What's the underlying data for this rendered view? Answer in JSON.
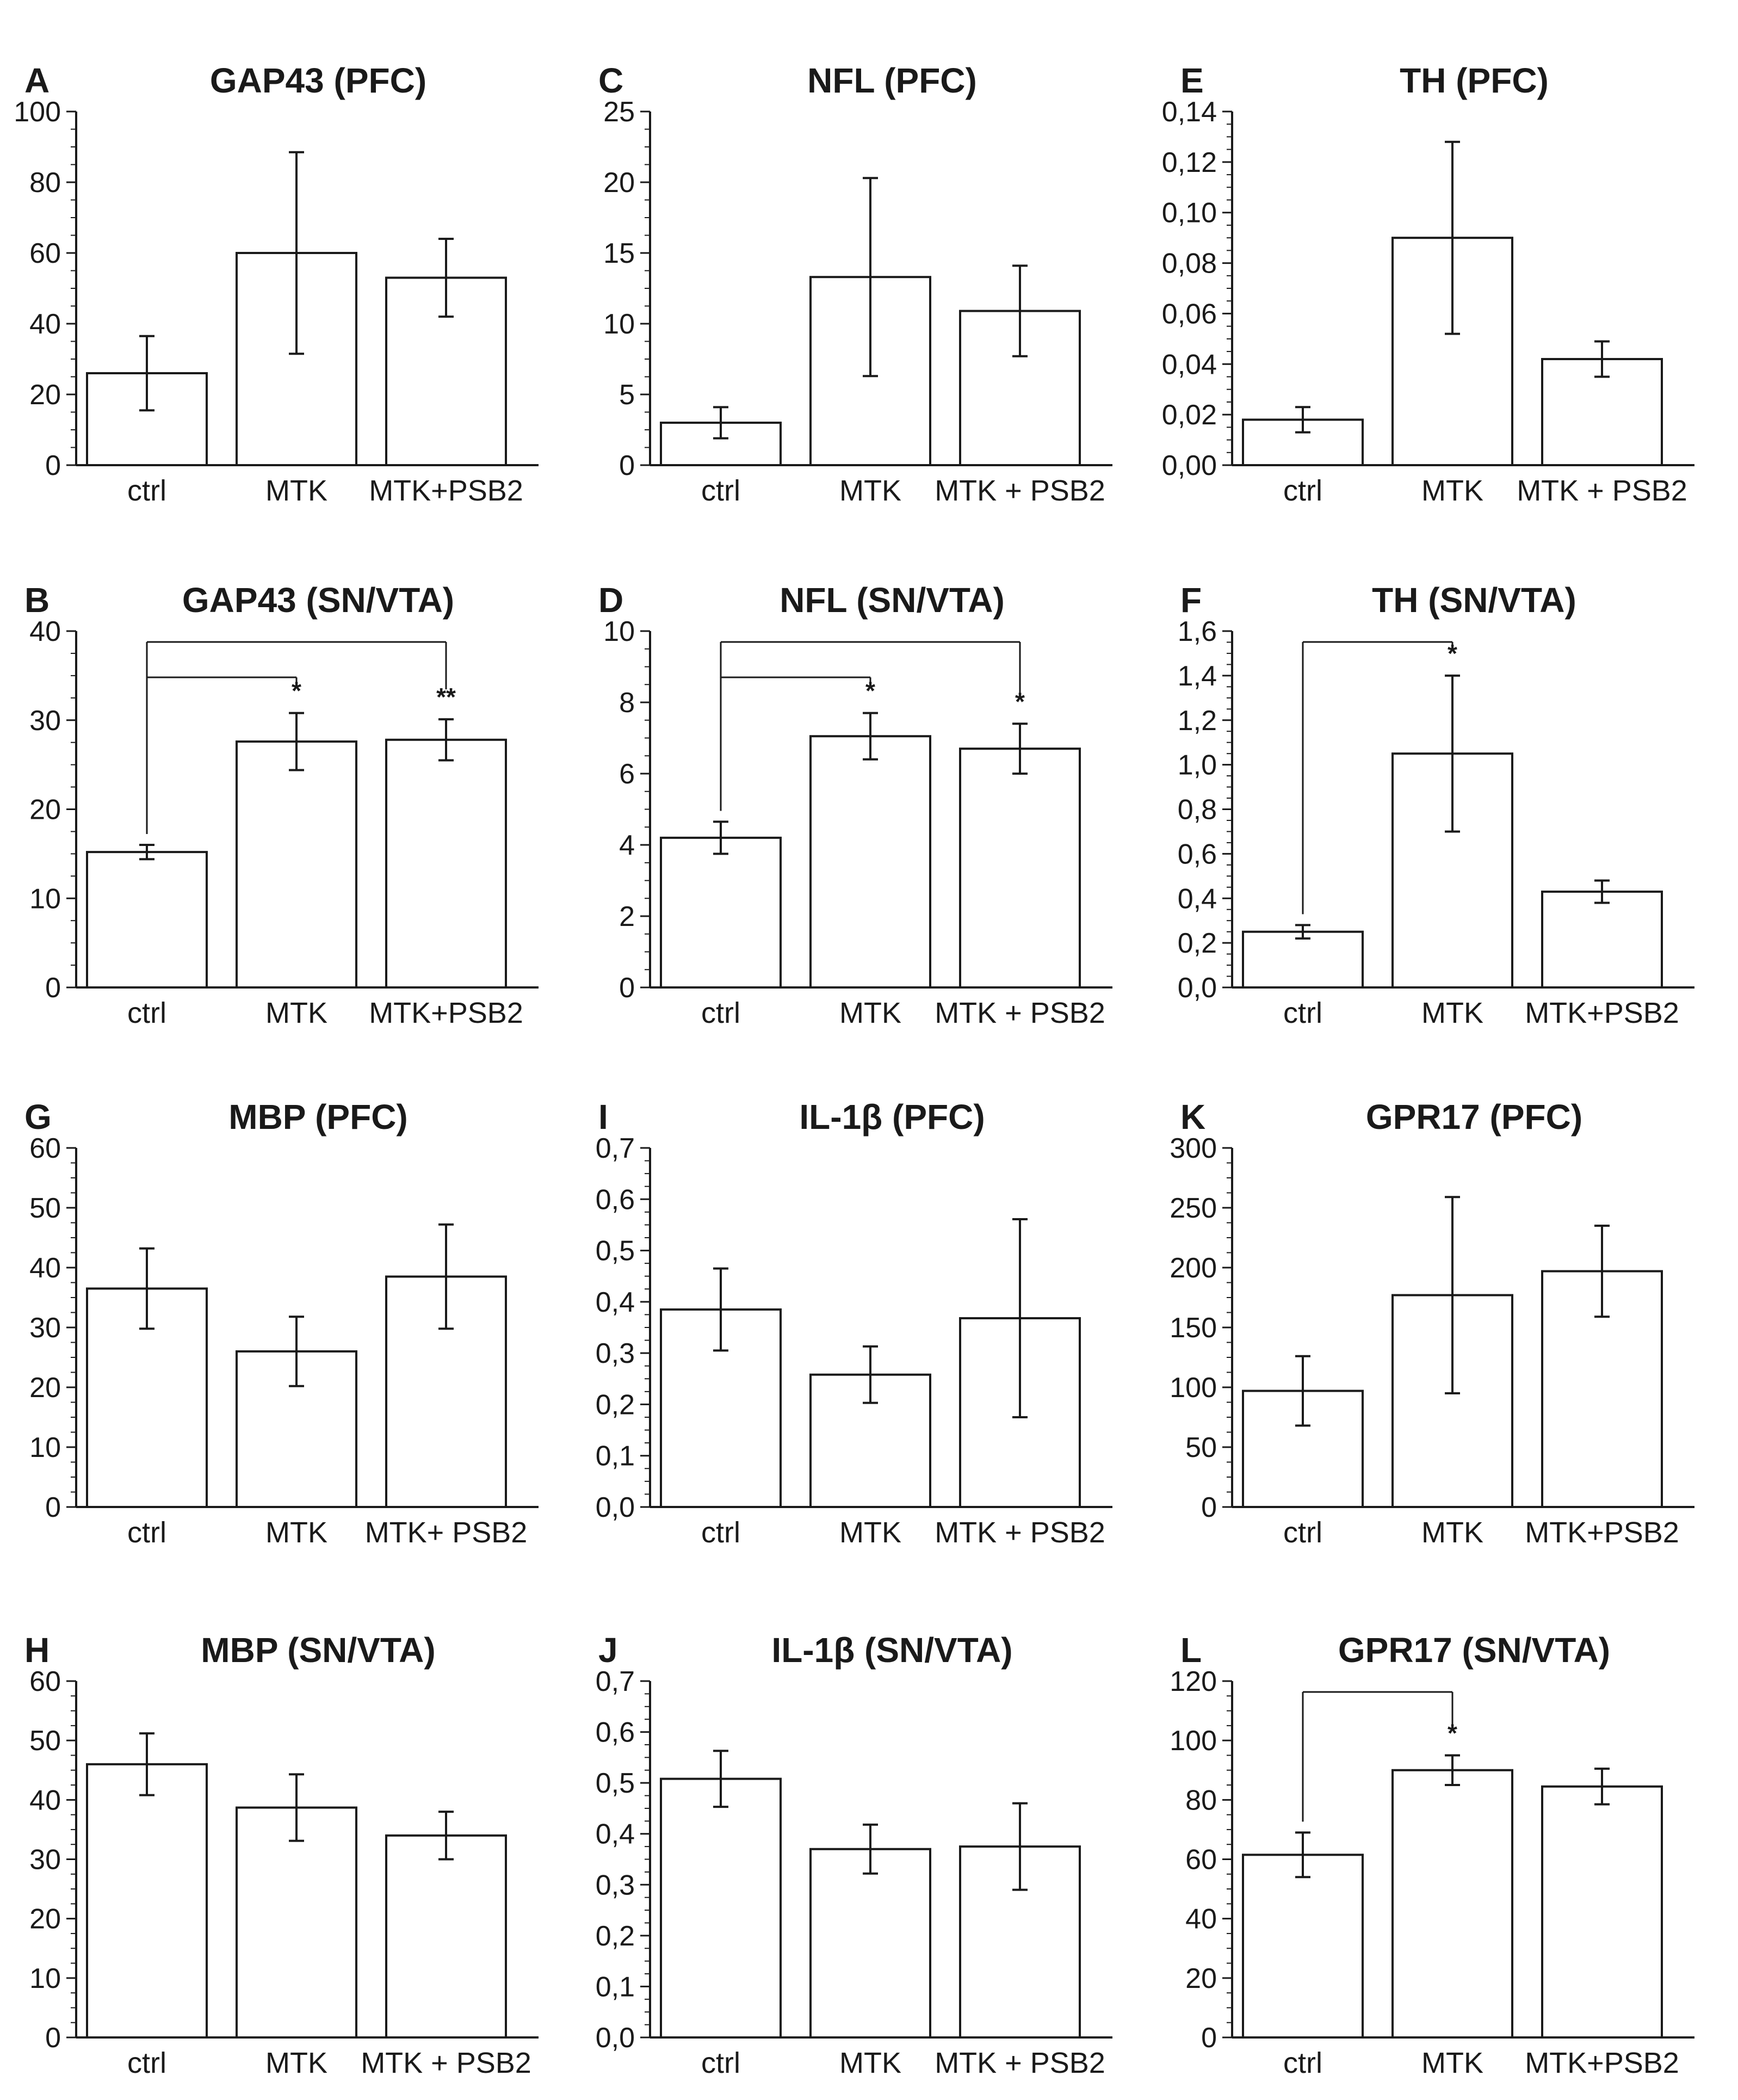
{
  "chart_data": [
    {
      "panel": "A",
      "title": "GAP43 (PFC)",
      "type": "bar",
      "categories": [
        "ctrl",
        "MTK",
        "MTK+PSB2"
      ],
      "values": [
        26,
        60,
        53
      ],
      "errors": [
        10.5,
        28.5,
        11
      ],
      "ylim": [
        0,
        100
      ],
      "yticks": [
        "0",
        "20",
        "40",
        "60",
        "80",
        "100"
      ],
      "yticks_values": [
        0,
        20,
        40,
        60,
        80,
        100
      ],
      "significance": []
    },
    {
      "panel": "C",
      "title": "NFL (PFC)",
      "type": "bar",
      "categories": [
        "ctrl",
        "MTK",
        "MTK + PSB2"
      ],
      "values": [
        3,
        13.3,
        10.9
      ],
      "errors": [
        1.1,
        7,
        3.2
      ],
      "ylim": [
        0,
        25
      ],
      "yticks": [
        "0",
        "5",
        "10",
        "15",
        "20",
        "25"
      ],
      "yticks_values": [
        0,
        5,
        10,
        15,
        20,
        25
      ],
      "significance": []
    },
    {
      "panel": "E",
      "title": "TH (PFC)",
      "type": "bar",
      "categories": [
        "ctrl",
        "MTK",
        "MTK + PSB2"
      ],
      "values": [
        0.018,
        0.09,
        0.042
      ],
      "errors": [
        0.005,
        0.038,
        0.007
      ],
      "ylim": [
        0,
        0.14
      ],
      "yticks": [
        "0,00",
        "0,02",
        "0,04",
        "0,06",
        "0,08",
        "0,10",
        "0,12",
        "0,14"
      ],
      "yticks_values": [
        0,
        0.02,
        0.04,
        0.06,
        0.08,
        0.1,
        0.12,
        0.14
      ],
      "significance": []
    },
    {
      "panel": "B",
      "title": "GAP43 (SN/VTA)",
      "type": "bar",
      "categories": [
        "ctrl",
        "MTK",
        "MTK+PSB2"
      ],
      "values": [
        15.2,
        27.6,
        27.8
      ],
      "errors": [
        0.8,
        3.2,
        2.3
      ],
      "ylim": [
        0,
        40
      ],
      "yticks": [
        "0",
        "10",
        "20",
        "30",
        "40"
      ],
      "yticks_values": [
        0,
        10,
        20,
        30,
        40
      ],
      "significance": [
        {
          "to": 1,
          "label": "*"
        },
        {
          "to": 2,
          "label": "**"
        }
      ]
    },
    {
      "panel": "D",
      "title": "NFL (SN/VTA)",
      "type": "bar",
      "categories": [
        "ctrl",
        "MTK",
        "MTK + PSB2"
      ],
      "values": [
        4.2,
        7.05,
        6.7
      ],
      "errors": [
        0.45,
        0.65,
        0.7
      ],
      "ylim": [
        0,
        10
      ],
      "yticks": [
        "0",
        "2",
        "4",
        "6",
        "8",
        "10"
      ],
      "yticks_values": [
        0,
        2,
        4,
        6,
        8,
        10
      ],
      "significance": [
        {
          "to": 1,
          "label": "*"
        },
        {
          "to": 2,
          "label": "*"
        }
      ]
    },
    {
      "panel": "F",
      "title": "TH (SN/VTA)",
      "type": "bar",
      "categories": [
        "ctrl",
        "MTK",
        "MTK+PSB2"
      ],
      "values": [
        0.25,
        1.05,
        0.43
      ],
      "errors": [
        0.03,
        0.35,
        0.05
      ],
      "ylim": [
        0,
        1.6
      ],
      "yticks": [
        "0,0",
        "0,2",
        "0,4",
        "0,6",
        "0,8",
        "1,0",
        "1,2",
        "1,4",
        "1,6"
      ],
      "yticks_values": [
        0,
        0.2,
        0.4,
        0.6,
        0.8,
        1,
        1.2,
        1.4,
        1.6
      ],
      "significance": [
        {
          "to": 1,
          "label": "*"
        }
      ]
    },
    {
      "panel": "G",
      "title": "MBP (PFC)",
      "type": "bar",
      "categories": [
        "ctrl",
        "MTK",
        "MTK+ PSB2"
      ],
      "values": [
        36.5,
        26,
        38.5
      ],
      "errors": [
        6.7,
        5.8,
        8.7
      ],
      "ylim": [
        0,
        60
      ],
      "yticks": [
        "0",
        "10",
        "20",
        "30",
        "40",
        "50",
        "60"
      ],
      "yticks_values": [
        0,
        10,
        20,
        30,
        40,
        50,
        60
      ],
      "significance": []
    },
    {
      "panel": "I",
      "title": "IL-1β (PFC)",
      "type": "bar",
      "categories": [
        "ctrl",
        "MTK",
        "MTK + PSB2"
      ],
      "values": [
        0.385,
        0.258,
        0.368
      ],
      "errors": [
        0.08,
        0.055,
        0.193
      ],
      "ylim": [
        0,
        0.7
      ],
      "yticks": [
        "0,0",
        "0,1",
        "0,2",
        "0,3",
        "0,4",
        "0,5",
        "0,6",
        "0,7"
      ],
      "yticks_values": [
        0,
        0.1,
        0.2,
        0.3,
        0.4,
        0.5,
        0.6,
        0.7
      ],
      "significance": []
    },
    {
      "panel": "K",
      "title": "GPR17 (PFC)",
      "type": "bar",
      "categories": [
        "ctrl",
        "MTK",
        "MTK+PSB2"
      ],
      "values": [
        97,
        177,
        197
      ],
      "errors": [
        29,
        82,
        38
      ],
      "ylim": [
        0,
        300
      ],
      "yticks": [
        "0",
        "50",
        "100",
        "150",
        "200",
        "250",
        "300"
      ],
      "yticks_values": [
        0,
        50,
        100,
        150,
        200,
        250,
        300
      ],
      "significance": []
    },
    {
      "panel": "H",
      "title": "MBP (SN/VTA)",
      "type": "bar",
      "categories": [
        "ctrl",
        "MTK",
        "MTK + PSB2"
      ],
      "values": [
        46,
        38.7,
        34
      ],
      "errors": [
        5.2,
        5.6,
        4
      ],
      "ylim": [
        0,
        60
      ],
      "yticks": [
        "0",
        "10",
        "20",
        "30",
        "40",
        "50",
        "60"
      ],
      "yticks_values": [
        0,
        10,
        20,
        30,
        40,
        50,
        60
      ],
      "significance": []
    },
    {
      "panel": "J",
      "title": "IL-1β (SN/VTA)",
      "type": "bar",
      "categories": [
        "ctrl",
        "MTK",
        "MTK + PSB2"
      ],
      "values": [
        0.508,
        0.37,
        0.375
      ],
      "errors": [
        0.055,
        0.048,
        0.085
      ],
      "ylim": [
        0,
        0.7
      ],
      "yticks": [
        "0,0",
        "0,1",
        "0,2",
        "0,3",
        "0,4",
        "0,5",
        "0,6",
        "0,7"
      ],
      "yticks_values": [
        0,
        0.1,
        0.2,
        0.3,
        0.4,
        0.5,
        0.6,
        0.7
      ],
      "significance": []
    },
    {
      "panel": "L",
      "title": "GPR17 (SN/VTA)",
      "type": "bar",
      "categories": [
        "ctrl",
        "MTK",
        "MTK+PSB2"
      ],
      "values": [
        61.5,
        90,
        84.5
      ],
      "errors": [
        7.5,
        5,
        6
      ],
      "ylim": [
        0,
        120
      ],
      "yticks": [
        "0",
        "20",
        "40",
        "60",
        "80",
        "100",
        "120"
      ],
      "yticks_values": [
        0,
        20,
        40,
        60,
        80,
        100,
        120
      ],
      "significance": [
        {
          "to": 1,
          "label": "*"
        }
      ]
    }
  ]
}
